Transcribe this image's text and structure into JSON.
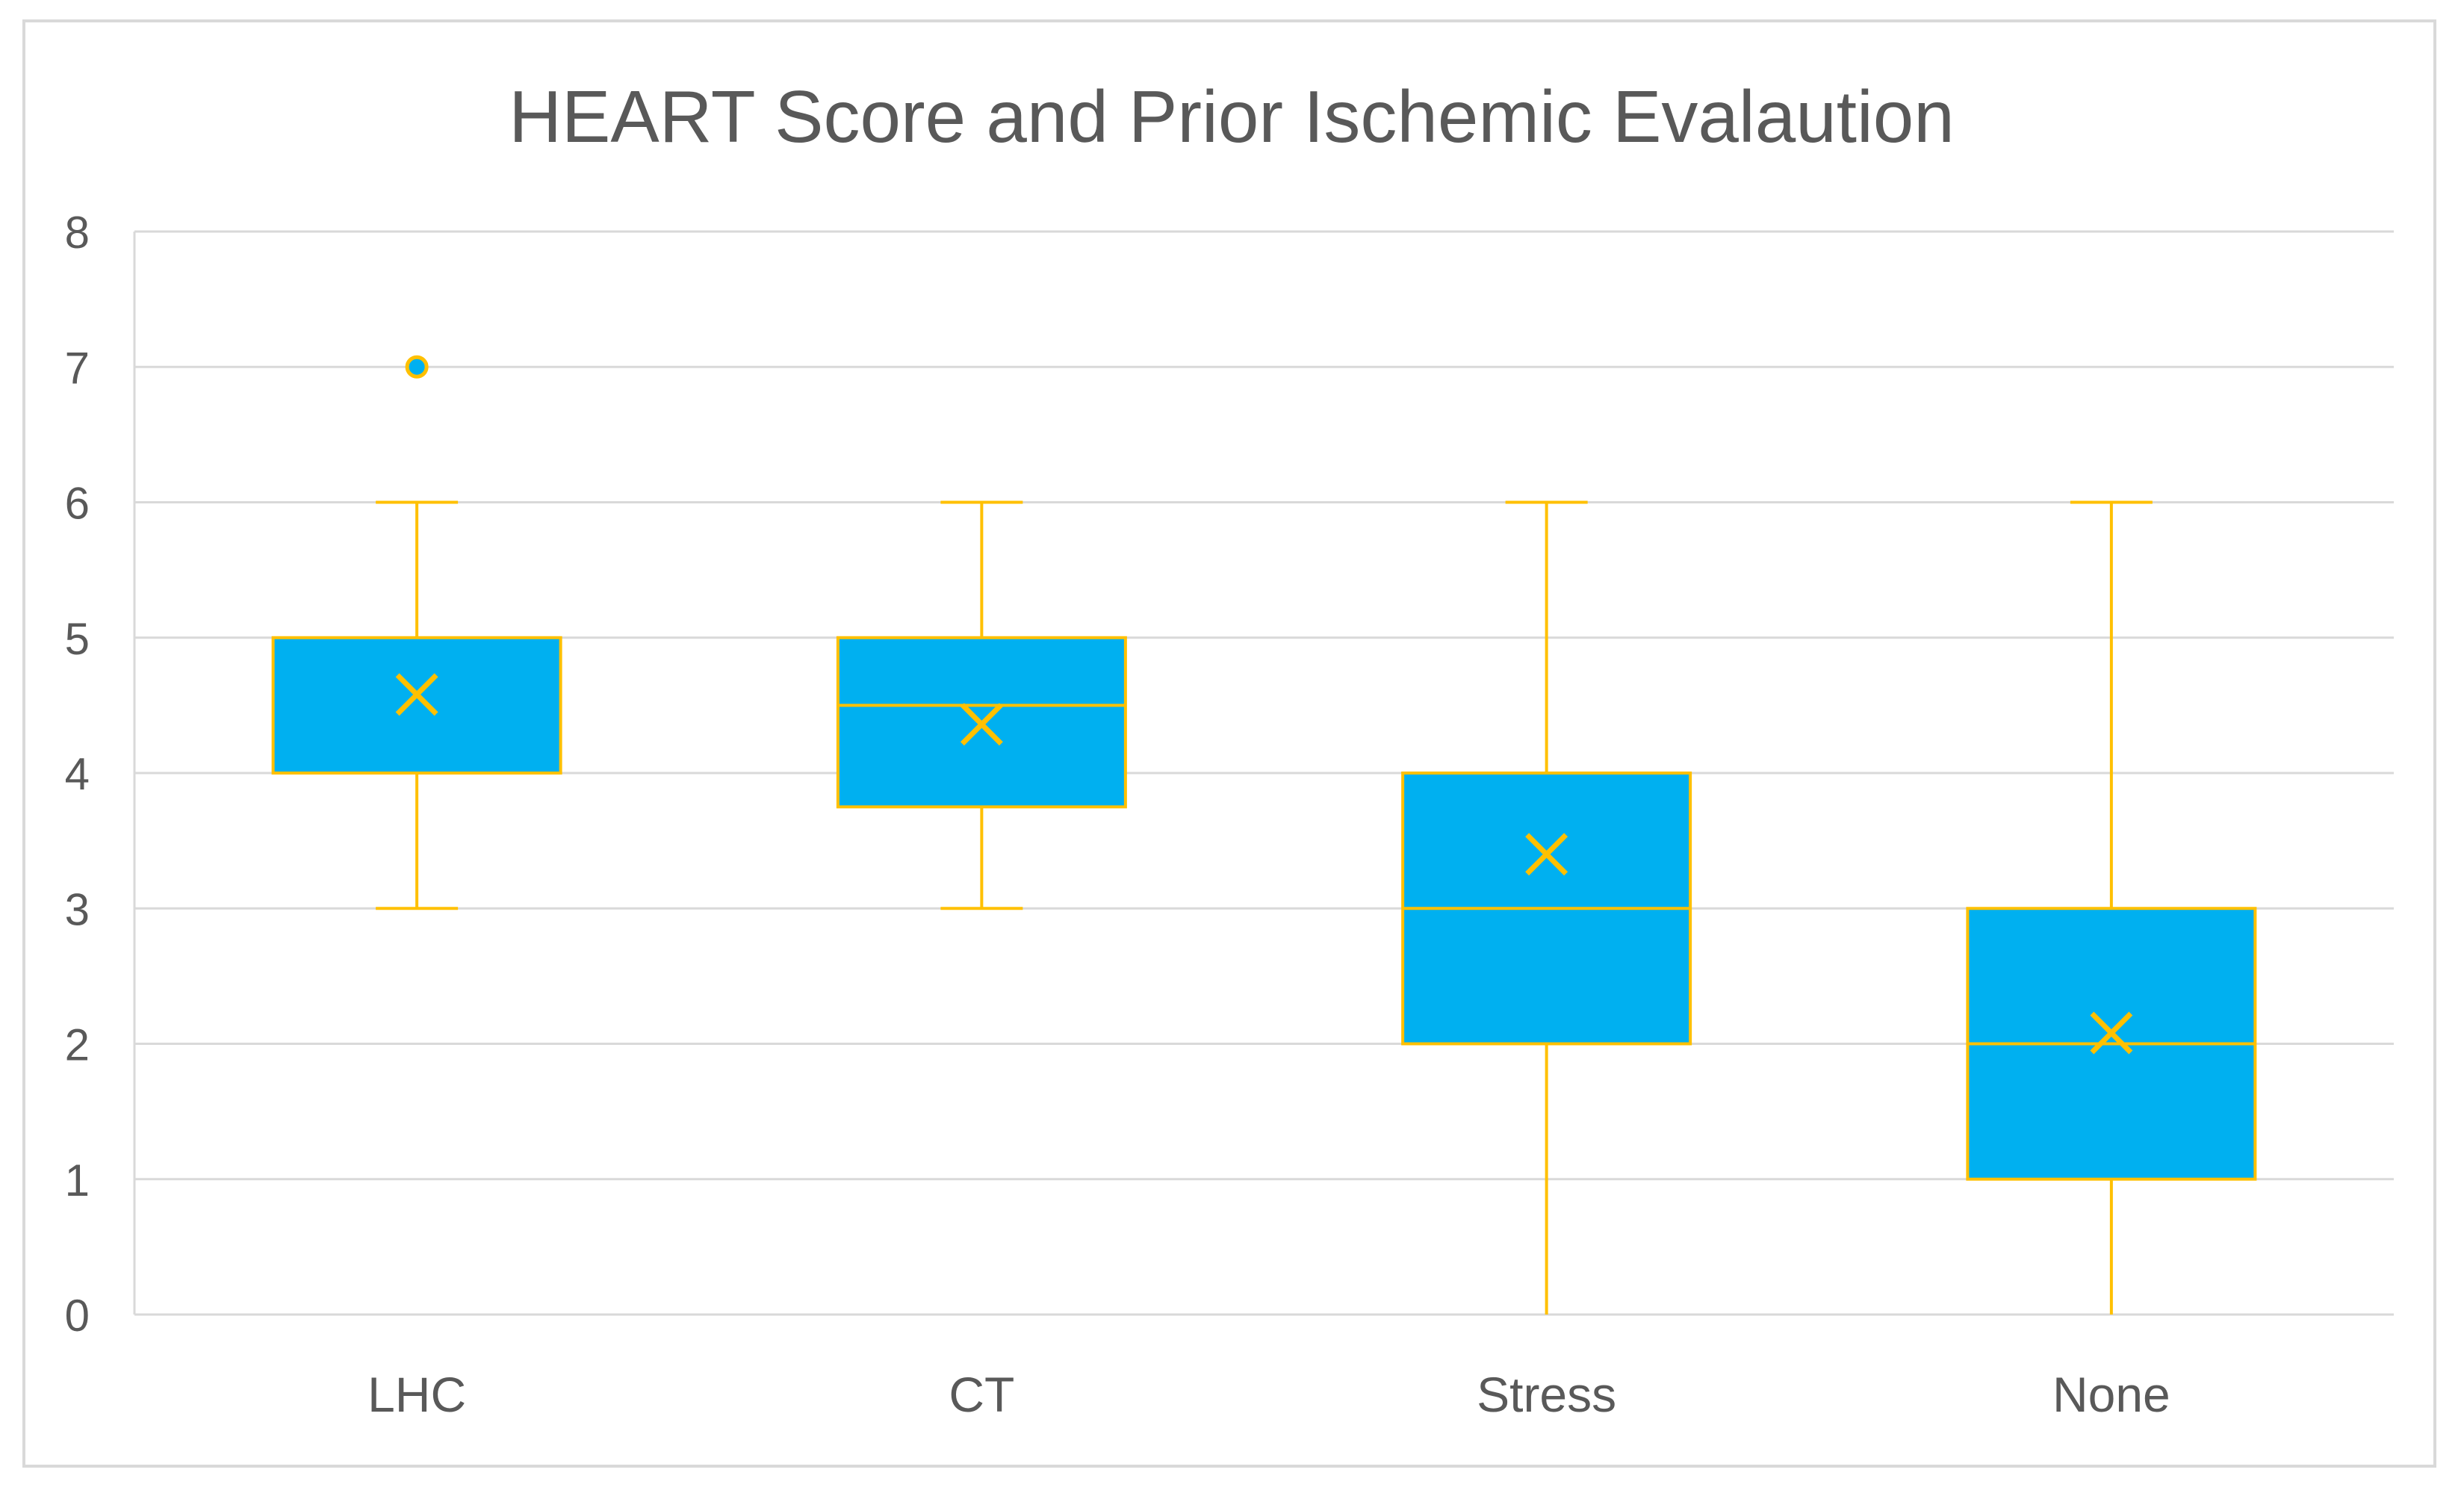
{
  "chart_data": {
    "type": "boxplot",
    "title": "HEART Score and Prior Ischemic Evalaution",
    "xlabel": "",
    "ylabel": "",
    "ylim": [
      0,
      8
    ],
    "yticks": [
      0,
      1,
      2,
      3,
      4,
      5,
      6,
      7,
      8
    ],
    "grid": true,
    "categories": [
      "LHC",
      "CT",
      "Stress",
      "None"
    ],
    "boxes": [
      {
        "category": "LHC",
        "min": 3,
        "q1": 4,
        "median": 4,
        "q3": 5,
        "max": 6,
        "mean": 4.58,
        "outliers": [
          7
        ]
      },
      {
        "category": "CT",
        "min": 3,
        "q1": 3.75,
        "median": 4.5,
        "q3": 5,
        "max": 6,
        "mean": 4.36,
        "outliers": []
      },
      {
        "category": "Stress",
        "min": 0,
        "q1": 2,
        "median": 3,
        "q3": 4,
        "max": 6,
        "mean": 3.4,
        "outliers": []
      },
      {
        "category": "None",
        "min": 0,
        "q1": 1,
        "median": 2,
        "q3": 3,
        "max": 6,
        "mean": 2.08,
        "outliers": []
      }
    ],
    "colors": {
      "box_fill": "#00b0f0",
      "line": "#ffc000",
      "grid": "#d9d9d9",
      "axis": "#d9d9d9",
      "text": "#595959"
    }
  }
}
